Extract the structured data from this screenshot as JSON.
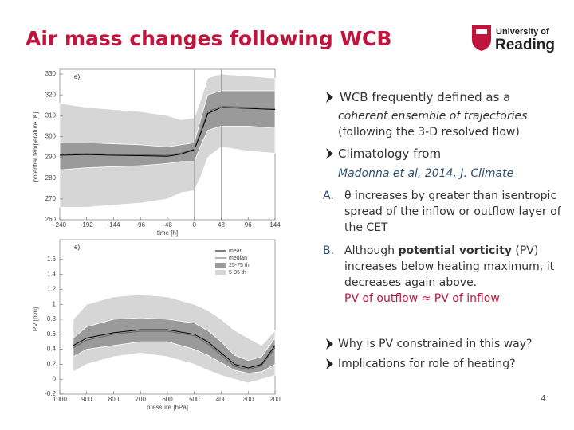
{
  "slide": {
    "title": "Air mass changes following WCB",
    "logo": {
      "line1": "University of",
      "line2": "Reading"
    },
    "bullets": [
      {
        "text": "WCB frequently defined as a",
        "detail": [
          "coherent ensemble of trajectories",
          "(following the 3-D resolved flow)"
        ]
      },
      {
        "text": "Climatology from",
        "detail": [
          "Madonna et al, 2014, J. Climate"
        ]
      }
    ],
    "points": [
      {
        "label": "A.",
        "text": "θ increases by greater than isentropic spread of the inflow or outflow layer of the CET"
      },
      {
        "label": "B.",
        "text": "Although ",
        "bold": "potential vorticity",
        "rest": " (PV) increases below heating maximum, it decreases again above.",
        "highlight": "PV of outflow ≈ PV of inflow"
      }
    ],
    "questions": [
      "Why is PV constrained in this way?",
      "Implications for role of heating?"
    ],
    "page_number": "4"
  },
  "chart_data": [
    {
      "type": "band-line",
      "panel": "e)",
      "x_label": "time [h]",
      "y_label": "potential temperature [K]",
      "x": [
        -240,
        -192,
        -144,
        -96,
        -48,
        -24,
        0,
        12,
        24,
        48,
        96,
        144
      ],
      "xlim": [
        -240,
        144
      ],
      "xticks": [
        -240,
        -192,
        -144,
        -96,
        -48,
        0,
        48,
        96,
        144
      ],
      "ylim": [
        260,
        330
      ],
      "yticks": [
        260,
        270,
        280,
        290,
        300,
        310,
        320,
        330
      ],
      "vlines": [
        0,
        48
      ],
      "series": [
        {
          "color": "#000000",
          "values": [
            291,
            291.3,
            291,
            290.8,
            290.5,
            291.5,
            293.7,
            302,
            311,
            314,
            313.5,
            313
          ]
        },
        {
          "color": "#666666",
          "values": [
            291.5,
            291.8,
            291.5,
            291.2,
            291,
            292,
            294,
            303,
            312,
            314.5,
            314,
            313.5
          ]
        },
        {
          "color": "#9a9a9a",
          "low": [
            284,
            285,
            285.5,
            286,
            287,
            288,
            288,
            296,
            303,
            305,
            305,
            304
          ],
          "high": [
            297,
            297,
            296.5,
            296,
            295,
            296,
            297,
            309,
            320,
            322,
            322,
            322
          ]
        },
        {
          "color": "#d6d6d6",
          "low": [
            266,
            266,
            267,
            268,
            270,
            273,
            274,
            281,
            290,
            295,
            293,
            292
          ],
          "high": [
            316,
            314,
            313,
            312,
            310,
            308,
            309,
            318,
            328,
            330,
            329,
            328
          ]
        }
      ]
    },
    {
      "type": "band-line",
      "panel": "e)",
      "x_label": "pressure [hPa]",
      "y_label": "PV [pvu]",
      "x": [
        950,
        900,
        800,
        700,
        600,
        500,
        450,
        400,
        350,
        300,
        250,
        200
      ],
      "xlim": [
        1000,
        200
      ],
      "xticks": [
        1000,
        900,
        800,
        700,
        600,
        500,
        400,
        300,
        200
      ],
      "ylim": [
        -0.2,
        1.8
      ],
      "yticks": [
        -0.2,
        0,
        0.2,
        0.4,
        0.6,
        0.8,
        1,
        1.2,
        1.4,
        1.6
      ],
      "series": [
        {
          "name": "mean",
          "color": "#000000",
          "values": [
            0.45,
            0.55,
            0.62,
            0.66,
            0.66,
            0.6,
            0.5,
            0.35,
            0.2,
            0.15,
            0.2,
            0.45
          ]
        },
        {
          "name": "median",
          "color": "#666666",
          "values": [
            0.42,
            0.52,
            0.6,
            0.64,
            0.64,
            0.58,
            0.47,
            0.32,
            0.17,
            0.13,
            0.18,
            0.42
          ]
        },
        {
          "name": "25-75 th",
          "color": "#9a9a9a",
          "low": [
            0.3,
            0.4,
            0.45,
            0.5,
            0.5,
            0.4,
            0.32,
            0.22,
            0.12,
            0.08,
            0.1,
            0.2
          ],
          "high": [
            0.55,
            0.7,
            0.8,
            0.82,
            0.8,
            0.75,
            0.65,
            0.5,
            0.32,
            0.25,
            0.3,
            0.55
          ]
        },
        {
          "name": "5-95 th",
          "color": "#d6d6d6",
          "low": [
            0.1,
            0.2,
            0.3,
            0.35,
            0.3,
            0.2,
            0.12,
            0.05,
            0,
            -0.05,
            0,
            0.05
          ],
          "high": [
            0.8,
            1.0,
            1.1,
            1.13,
            1.1,
            1.0,
            0.92,
            0.8,
            0.65,
            0.55,
            0.45,
            0.65
          ]
        }
      ]
    }
  ]
}
